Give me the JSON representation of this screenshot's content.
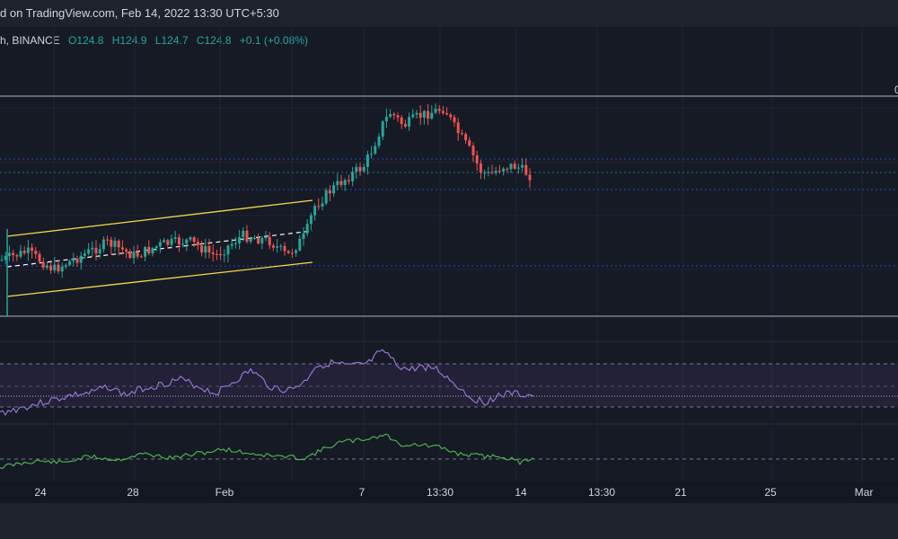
{
  "header": {
    "publish_text": "d on TradingView.com, Feb 14, 2022 13:30 UTC+5:30"
  },
  "legend": {
    "symbol": "h, BINANCE",
    "open": "O124.8",
    "high": "H124.9",
    "low": "L124.7",
    "close": "C124.8",
    "change": "+0.1 (+0.08%)"
  },
  "price_label_edge": "0",
  "time_axis": {
    "labels": [
      "24",
      "28",
      "Feb",
      "7",
      "13:30",
      "14",
      "13:30",
      "21",
      "25",
      "Mar"
    ]
  },
  "colors": {
    "up": "#26a69a",
    "down": "#ef5350",
    "channel": "#f5d94a",
    "rsi": "#9575cd",
    "osc": "#4caf50",
    "level": "#9598a1"
  },
  "chart_data": {
    "type": "candlestick",
    "candles": [
      [
        113,
        118,
        110,
        118
      ],
      [
        118,
        120,
        112,
        113
      ],
      [
        113,
        117,
        111,
        116
      ],
      [
        116,
        117,
        112,
        113
      ],
      [
        113,
        116,
        111,
        115
      ],
      [
        115,
        117,
        113,
        116
      ],
      [
        116,
        117,
        112,
        113
      ],
      [
        113,
        114,
        111,
        112
      ],
      [
        112,
        117,
        112,
        116
      ],
      [
        116,
        117,
        113,
        114
      ],
      [
        114,
        116,
        107,
        109
      ],
      [
        109,
        114,
        107,
        113
      ],
      [
        113,
        115,
        111,
        114
      ],
      [
        114,
        116,
        112,
        115
      ],
      [
        115,
        118,
        113,
        117
      ],
      [
        117,
        121,
        114,
        116
      ],
      [
        116,
        117,
        113,
        114
      ],
      [
        114,
        116,
        112,
        115
      ],
      [
        115,
        116,
        112,
        113
      ],
      [
        113,
        117,
        112,
        116
      ],
      [
        116,
        117,
        113,
        114
      ],
      [
        114,
        116,
        112,
        115
      ],
      [
        115,
        117,
        113,
        116
      ],
      [
        116,
        118,
        114,
        117
      ],
      [
        117,
        118,
        114,
        115
      ],
      [
        115,
        117,
        113,
        116
      ],
      [
        116,
        118,
        114,
        117
      ],
      [
        117,
        118,
        113,
        114
      ],
      [
        114,
        116,
        112,
        113
      ],
      [
        113,
        117,
        112,
        116
      ],
      [
        116,
        118,
        114,
        117
      ],
      [
        117,
        119,
        115,
        118
      ],
      [
        118,
        122,
        116,
        121
      ],
      [
        121,
        122,
        116,
        117
      ],
      [
        117,
        119,
        115,
        118
      ],
      [
        118,
        119,
        113,
        114
      ],
      [
        114,
        118,
        113,
        117
      ],
      [
        117,
        123,
        116,
        122
      ],
      [
        122,
        125,
        121,
        124
      ],
      [
        124,
        127,
        123,
        126
      ],
      [
        126,
        129,
        125,
        128
      ],
      [
        128,
        131,
        127,
        130
      ],
      [
        130,
        133,
        129,
        132
      ],
      [
        132,
        136,
        131,
        135
      ],
      [
        135,
        139,
        134,
        138
      ],
      [
        138,
        142,
        137,
        141
      ],
      [
        141,
        146,
        140,
        145
      ],
      [
        145,
        147,
        142,
        143
      ],
      [
        143,
        146,
        141,
        144
      ],
      [
        144,
        147,
        142,
        145
      ],
      [
        145,
        146,
        141,
        142
      ],
      [
        142,
        144,
        138,
        139
      ],
      [
        139,
        142,
        136,
        137
      ],
      [
        137,
        140,
        134,
        136
      ],
      [
        136,
        139,
        133,
        138
      ],
      [
        138,
        139,
        134,
        135
      ],
      [
        135,
        138,
        132,
        137
      ],
      [
        137,
        139,
        134,
        136
      ],
      [
        136,
        137,
        133,
        135
      ],
      [
        135,
        136,
        133,
        134
      ]
    ],
    "channel": {
      "upper": [
        110,
        123
      ],
      "lower": [
        104,
        115
      ]
    },
    "levels": [
      146,
      136,
      134,
      132,
      120,
      108
    ],
    "rsi": [
      38,
      40,
      42,
      44,
      43,
      46,
      45,
      48,
      47,
      50,
      52,
      51,
      53,
      55,
      54,
      56,
      58,
      57,
      59,
      60,
      58,
      61,
      60,
      62,
      61,
      63,
      64,
      62,
      60,
      58,
      61,
      63,
      65,
      68,
      70,
      72,
      71,
      73,
      74,
      72,
      70,
      71,
      69,
      67,
      65,
      64,
      60,
      55,
      50,
      48,
      47,
      46,
      47,
      46
    ],
    "osc": [
      10,
      11,
      12,
      11,
      12,
      13,
      12,
      14,
      13,
      14,
      15,
      14,
      16,
      15,
      16,
      17,
      16,
      18,
      17,
      18,
      19,
      18,
      20,
      21,
      22,
      24,
      26,
      28,
      30,
      28,
      26,
      24,
      22,
      20,
      18,
      17,
      16,
      15,
      14,
      12,
      11,
      12,
      10
    ]
  }
}
